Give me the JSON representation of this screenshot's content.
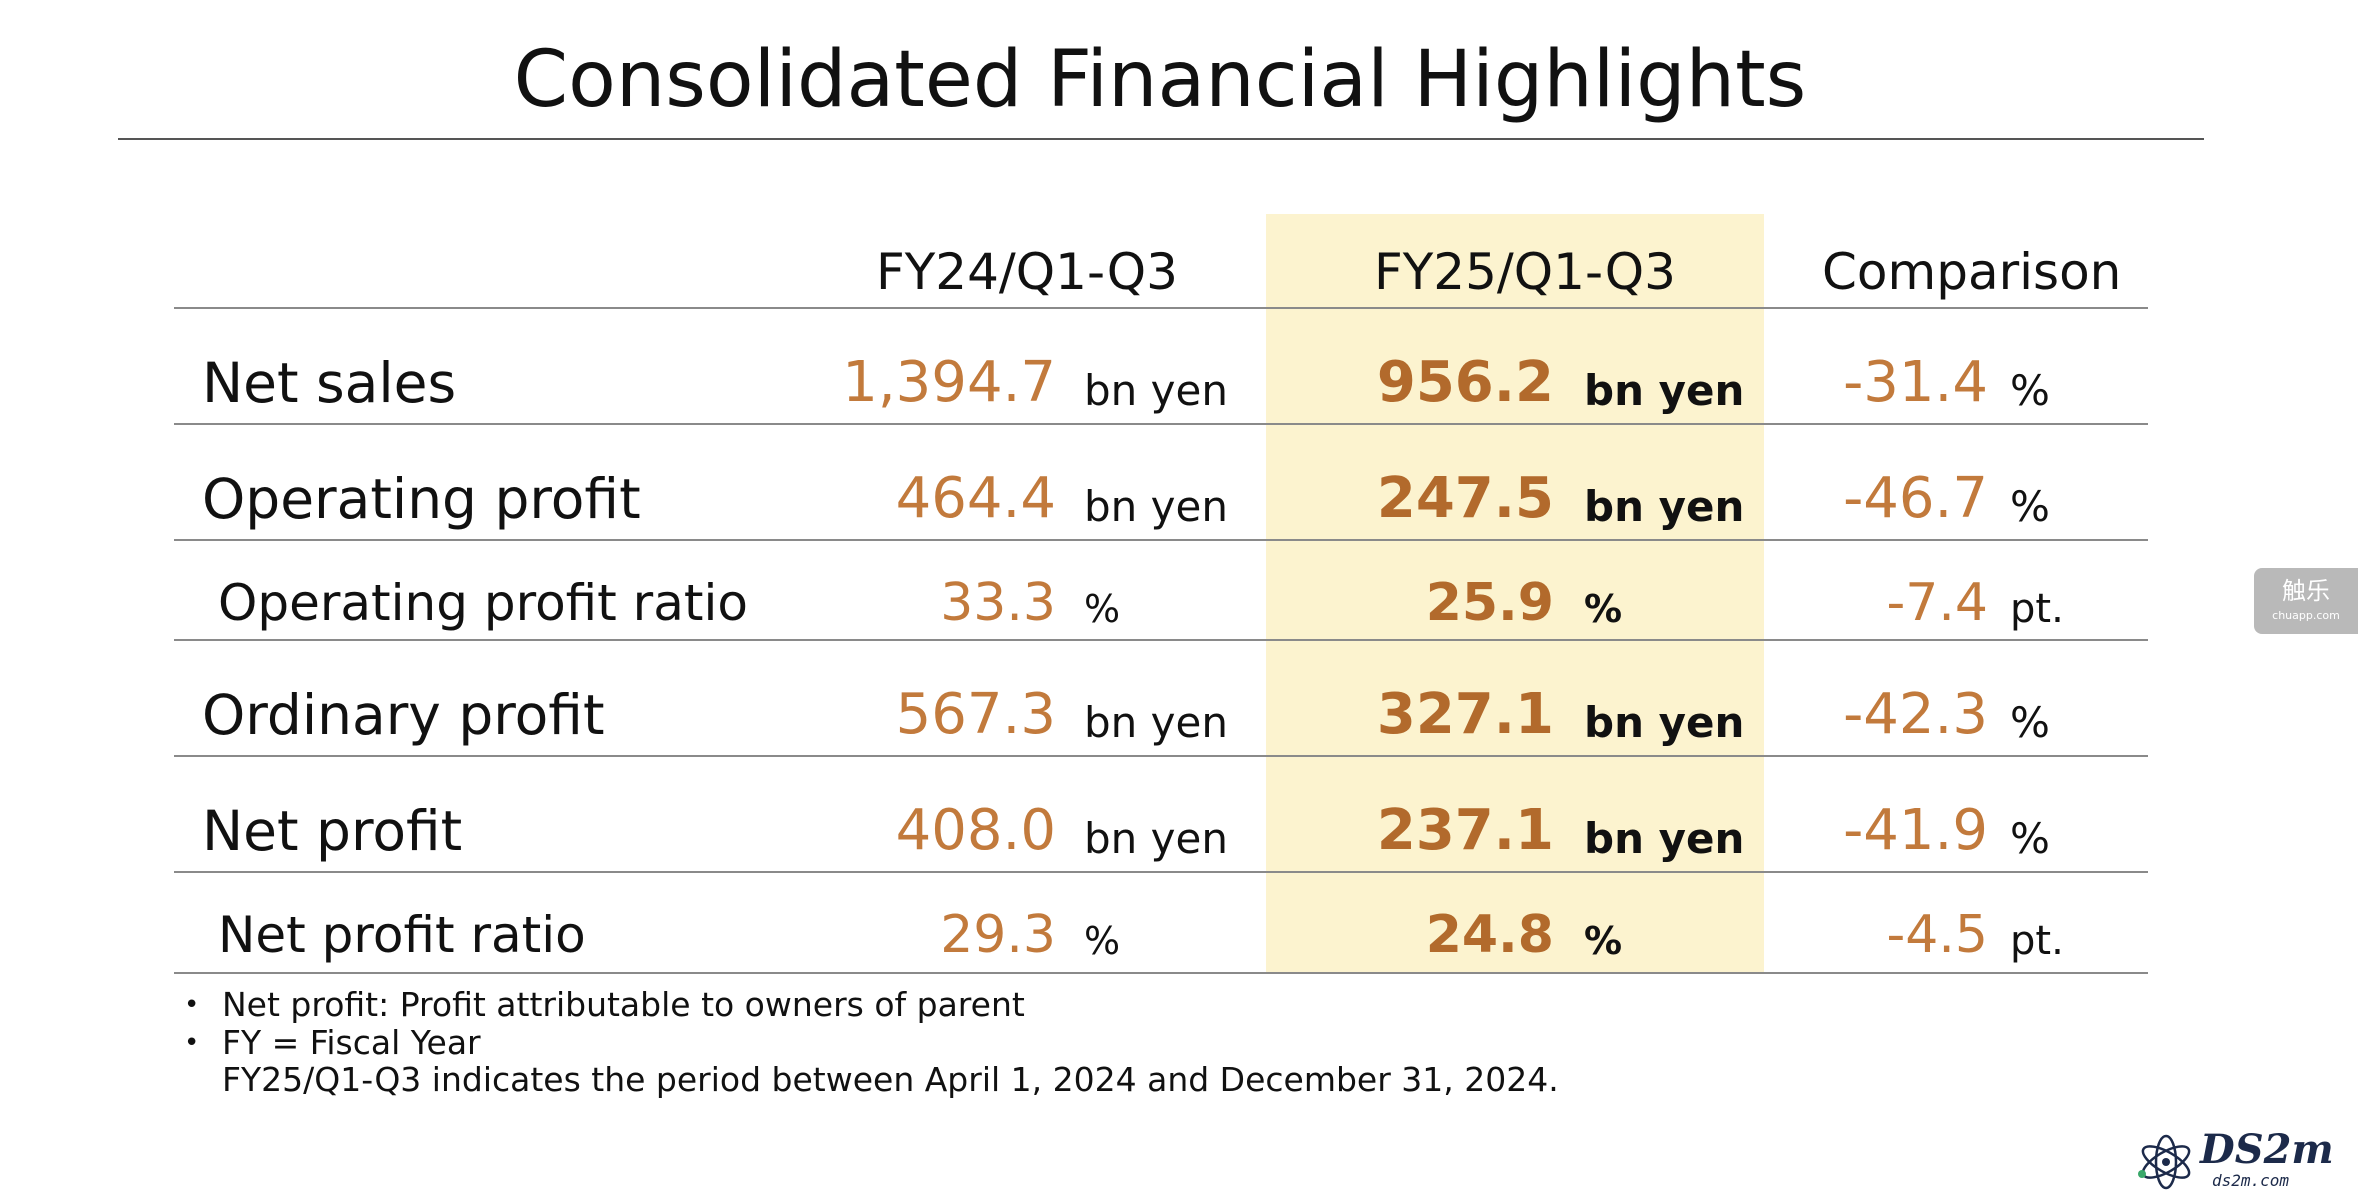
{
  "title": "Consolidated Financial Highlights",
  "columns": {
    "prev": "FY24/Q1-Q3",
    "curr": "FY25/Q1-Q3",
    "comparison": "Comparison"
  },
  "rows": [
    {
      "label": "Net sales",
      "prev_value": "1,394.7",
      "prev_unit": "bn yen",
      "curr_value": "956.2",
      "curr_unit": "bn yen",
      "cmp_value": "-31.4",
      "cmp_unit": "%"
    },
    {
      "label": "Operating profit",
      "prev_value": "464.4",
      "prev_unit": "bn yen",
      "curr_value": "247.5",
      "curr_unit": "bn yen",
      "cmp_value": "-46.7",
      "cmp_unit": "%"
    },
    {
      "label": "Operating profit ratio",
      "prev_value": "33.3",
      "prev_unit": "%",
      "curr_value": "25.9",
      "curr_unit": "%",
      "cmp_value": "-7.4",
      "cmp_unit": "pt."
    },
    {
      "label": "Ordinary profit",
      "prev_value": "567.3",
      "prev_unit": "bn yen",
      "curr_value": "327.1",
      "curr_unit": "bn yen",
      "cmp_value": "-42.3",
      "cmp_unit": "%"
    },
    {
      "label": "Net profit",
      "prev_value": "408.0",
      "prev_unit": "bn yen",
      "curr_value": "237.1",
      "curr_unit": "bn yen",
      "cmp_value": "-41.9",
      "cmp_unit": "%"
    },
    {
      "label": "Net profit ratio",
      "prev_value": "29.3",
      "prev_unit": "%",
      "curr_value": "24.8",
      "curr_unit": "%",
      "cmp_value": "-4.5",
      "cmp_unit": "pt."
    }
  ],
  "notes": {
    "bullet": "•",
    "note1": "Net profit: Profit attributable to owners of parent",
    "note2": "FY = Fiscal Year",
    "note3": "FY25/Q1-Q3 indicates the period between April 1, 2024 and December 31, 2024."
  },
  "watermark": {
    "main": "触乐",
    "sub": "chuapp.com"
  },
  "logo": {
    "main": "DS2m",
    "sub": "ds2m.com"
  },
  "colors": {
    "highlight": "#fcf3cf",
    "value": "#c27a3c",
    "value_bold": "#b26a2c"
  }
}
